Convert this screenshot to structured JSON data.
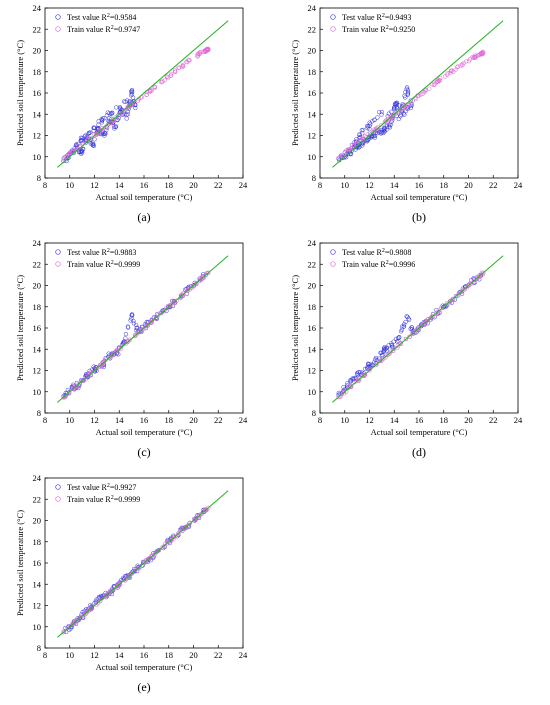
{
  "chart_data": [
    {
      "type": "scatter",
      "panel_label": "(a)",
      "xlabel": "Actual soil temperature (°C)",
      "ylabel": "Predicted soil temperature (°C)",
      "xlim": [
        8,
        24
      ],
      "ylim": [
        8,
        24
      ],
      "xticks": [
        "8",
        "10",
        "12",
        "14",
        "16",
        "18",
        "20",
        "22",
        "24"
      ],
      "yticks": [
        "8",
        "10",
        "12",
        "14",
        "16",
        "18",
        "20",
        "22",
        "24"
      ],
      "legend_placement": "top-left",
      "series": [
        {
          "name": "Test value R²=0.9584",
          "color": "#3b3bdc",
          "marker": "circle",
          "values_x": [
            9.5,
            10.1,
            10.6,
            11.0,
            11.4,
            11.9,
            12.3,
            12.8,
            13.2,
            13.7,
            14.1,
            14.6,
            15.0,
            15.3,
            14.4,
            13.0,
            12.0,
            11.2,
            10.4
          ],
          "values_y": [
            9.6,
            10.3,
            10.9,
            10.4,
            11.9,
            11.1,
            12.6,
            12.0,
            13.6,
            12.8,
            14.5,
            13.6,
            16.2,
            14.6,
            15.2,
            13.9,
            12.7,
            11.9,
            10.8
          ]
        },
        {
          "name": "Train value R²=0.9747",
          "color": "#e06ad8",
          "marker": "circle",
          "values_x": [
            9.5,
            10.5,
            11.5,
            12.5,
            13.5,
            14.5,
            15.5,
            16.5,
            17.5,
            18.5,
            19.5,
            20.5,
            21.0,
            21.2
          ],
          "values_y": [
            9.8,
            10.7,
            11.6,
            12.5,
            13.4,
            14.4,
            15.3,
            16.2,
            17.1,
            18.0,
            18.9,
            19.7,
            20.0,
            20.1
          ]
        },
        {
          "name": "",
          "color": "#2ab52a",
          "marker": "line",
          "values_x": [
            9.0,
            22.8
          ],
          "values_y": [
            9.0,
            22.8
          ]
        }
      ]
    },
    {
      "type": "scatter",
      "panel_label": "(b)",
      "xlabel": "Actual soil temperature (°C)",
      "ylabel": "Predicted soil temperature (°C)",
      "xlim": [
        8,
        24
      ],
      "ylim": [
        8,
        24
      ],
      "xticks": [
        "8",
        "10",
        "12",
        "14",
        "16",
        "18",
        "20",
        "22",
        "24"
      ],
      "yticks": [
        "8",
        "10",
        "12",
        "14",
        "16",
        "18",
        "20",
        "22",
        "24"
      ],
      "legend_placement": "top-left",
      "series": [
        {
          "name": "Test value R²=0.9493",
          "color": "#3b3bdc",
          "marker": "circle",
          "values_x": [
            9.5,
            10.1,
            10.6,
            11.0,
            11.4,
            11.9,
            12.3,
            12.8,
            13.2,
            13.7,
            14.1,
            14.6,
            15.0,
            15.4,
            14.5,
            13.0,
            12.0,
            11.2,
            10.4
          ],
          "values_y": [
            9.8,
            10.2,
            10.6,
            10.9,
            11.3,
            11.6,
            12.0,
            12.3,
            12.6,
            13.0,
            15.0,
            14.3,
            16.4,
            14.9,
            13.8,
            14.2,
            12.9,
            12.1,
            10.5
          ]
        },
        {
          "name": "Train value R²=0.9250",
          "color": "#e06ad8",
          "marker": "circle",
          "values_x": [
            9.5,
            10.5,
            11.5,
            12.5,
            13.5,
            14.5,
            15.5,
            16.5,
            17.5,
            18.5,
            19.5,
            20.5,
            21.0,
            21.2
          ],
          "values_y": [
            9.9,
            10.8,
            11.7,
            12.6,
            13.5,
            14.4,
            15.3,
            16.2,
            17.1,
            17.9,
            18.7,
            19.4,
            19.7,
            19.8
          ]
        },
        {
          "name": "",
          "color": "#2ab52a",
          "marker": "line",
          "values_x": [
            9.0,
            22.8
          ],
          "values_y": [
            9.0,
            22.8
          ]
        }
      ]
    },
    {
      "type": "scatter",
      "panel_label": "(c)",
      "xlabel": "Actual soil temperature (°C)",
      "ylabel": "Predicted soil temperature (°C)",
      "xlim": [
        8,
        24
      ],
      "ylim": [
        8,
        24
      ],
      "xticks": [
        "8",
        "10",
        "12",
        "14",
        "16",
        "18",
        "20",
        "22",
        "24"
      ],
      "yticks": [
        "8",
        "10",
        "12",
        "14",
        "16",
        "18",
        "20",
        "22",
        "24"
      ],
      "legend_placement": "top-left",
      "series": [
        {
          "name": "Test value R²=0.9883",
          "color": "#3b3bdc",
          "marker": "circle",
          "values_x": [
            9.5,
            10.2,
            10.8,
            11.4,
            12.0,
            12.6,
            13.2,
            13.8,
            14.4,
            15.0,
            15.5,
            16.2,
            17.0,
            18.0,
            19.0,
            20.0,
            21.0
          ],
          "values_y": [
            9.6,
            10.3,
            10.7,
            11.5,
            12.2,
            12.4,
            13.4,
            13.6,
            14.6,
            17.2,
            15.6,
            16.3,
            17.0,
            18.0,
            19.0,
            20.0,
            21.0
          ]
        },
        {
          "name": "Train value R²=0.9999",
          "color": "#e06ad8",
          "marker": "circle",
          "values_x": [
            9.5,
            10.5,
            11.5,
            12.5,
            13.5,
            14.5,
            15.5,
            16.5,
            17.5,
            18.5,
            19.5,
            20.5,
            21.2
          ],
          "values_y": [
            9.5,
            10.5,
            11.5,
            12.5,
            13.5,
            14.5,
            15.5,
            16.5,
            17.5,
            18.5,
            19.5,
            20.5,
            21.2
          ]
        },
        {
          "name": "",
          "color": "#2ab52a",
          "marker": "line",
          "values_x": [
            9.0,
            22.8
          ],
          "values_y": [
            9.0,
            22.8
          ]
        }
      ]
    },
    {
      "type": "scatter",
      "panel_label": "(d)",
      "xlabel": "Actual soil temperature (°C)",
      "ylabel": "Predicted soil temperature (°C)",
      "xlim": [
        8,
        24
      ],
      "ylim": [
        8,
        24
      ],
      "xticks": [
        "8",
        "10",
        "12",
        "14",
        "16",
        "18",
        "20",
        "22",
        "24"
      ],
      "yticks": [
        "8",
        "10",
        "12",
        "14",
        "16",
        "18",
        "20",
        "22",
        "24"
      ],
      "legend_placement": "top-left",
      "series": [
        {
          "name": "Test value R²=0.9808",
          "color": "#3b3bdc",
          "marker": "circle",
          "values_x": [
            9.5,
            10.2,
            10.8,
            11.4,
            12.0,
            12.6,
            13.2,
            13.8,
            14.4,
            15.0,
            15.5,
            16.2,
            17.0,
            18.0,
            19.0,
            20.0,
            21.0
          ],
          "values_y": [
            9.7,
            10.6,
            11.3,
            11.8,
            12.6,
            13.0,
            13.9,
            14.4,
            15.1,
            17.1,
            15.6,
            16.2,
            17.0,
            18.0,
            19.0,
            20.0,
            21.0
          ]
        },
        {
          "name": "Train value R²=0.9996",
          "color": "#e06ad8",
          "marker": "circle",
          "values_x": [
            9.5,
            10.5,
            11.5,
            12.5,
            13.5,
            14.5,
            15.5,
            16.5,
            17.5,
            18.5,
            19.5,
            20.5,
            21.2
          ],
          "values_y": [
            9.5,
            10.5,
            11.5,
            12.5,
            13.5,
            14.5,
            15.5,
            16.5,
            17.5,
            18.5,
            19.5,
            20.5,
            21.2
          ]
        },
        {
          "name": "",
          "color": "#2ab52a",
          "marker": "line",
          "values_x": [
            9.0,
            22.8
          ],
          "values_y": [
            9.0,
            22.8
          ]
        }
      ]
    },
    {
      "type": "scatter",
      "panel_label": "(e)",
      "xlabel": "Actual soil temperature (°C)",
      "ylabel": "Predicted soil temperature (°C)",
      "xlim": [
        8,
        24
      ],
      "ylim": [
        8,
        24
      ],
      "xticks": [
        "8",
        "10",
        "12",
        "14",
        "16",
        "18",
        "20",
        "22",
        "24"
      ],
      "yticks": [
        "8",
        "10",
        "12",
        "14",
        "16",
        "18",
        "20",
        "22",
        "24"
      ],
      "legend_placement": "top-left",
      "series": [
        {
          "name": "Test value R²=0.9927",
          "color": "#3b3bdc",
          "marker": "circle",
          "values_x": [
            9.5,
            10.2,
            10.8,
            11.4,
            12.0,
            12.6,
            13.2,
            13.8,
            14.4,
            15.0,
            15.6,
            16.4,
            17.2,
            18.2,
            19.2,
            20.2,
            21.0
          ],
          "values_y": [
            9.5,
            10.2,
            10.8,
            11.5,
            12.2,
            12.8,
            13.1,
            13.9,
            14.5,
            15.0,
            15.6,
            16.4,
            17.2,
            18.2,
            19.2,
            20.2,
            21.0
          ]
        },
        {
          "name": "Train value R²=0.9999",
          "color": "#e06ad8",
          "marker": "circle",
          "values_x": [
            9.5,
            10.5,
            11.5,
            12.5,
            13.5,
            14.5,
            15.5,
            16.5,
            17.5,
            18.5,
            19.5,
            20.5,
            21.2
          ],
          "values_y": [
            9.5,
            10.5,
            11.5,
            12.5,
            13.5,
            14.5,
            15.5,
            16.5,
            17.5,
            18.5,
            19.5,
            20.5,
            21.2
          ]
        },
        {
          "name": "",
          "color": "#2ab52a",
          "marker": "line",
          "values_x": [
            9.0,
            22.8
          ],
          "values_y": [
            9.0,
            22.8
          ]
        }
      ]
    }
  ]
}
